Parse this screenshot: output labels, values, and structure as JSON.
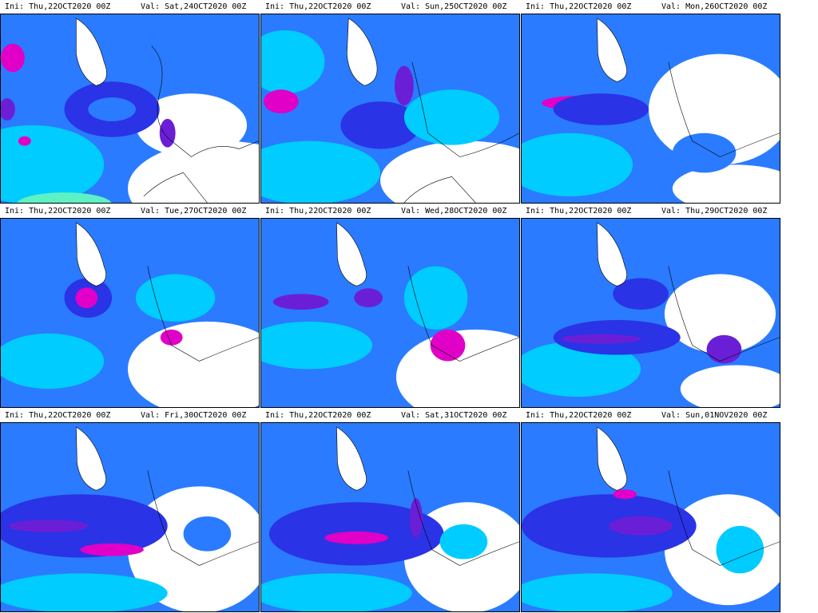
{
  "panels": [
    {
      "ini": "Ini: Thu,22OCT2020  00Z",
      "val": "Val: Sat,24OCT2020  00Z"
    },
    {
      "ini": "Ini: Thu,22OCT2020  00Z",
      "val": "Val: Sun,25OCT2020  00Z"
    },
    {
      "ini": "Ini: Thu,22OCT2020  00Z",
      "val": "Val: Mon,26OCT2020  00Z"
    },
    {
      "ini": "Ini: Thu,22OCT2020  00Z",
      "val": "Val: Tue,27OCT2020  00Z"
    },
    {
      "ini": "Ini: Thu,22OCT2020  00Z",
      "val": "Val: Wed,28OCT2020  00Z"
    },
    {
      "ini": "Ini: Thu,22OCT2020  00Z",
      "val": "Val: Thu,29OCT2020  00Z"
    },
    {
      "ini": "Ini: Thu,22OCT2020  00Z",
      "val": "Val: Fri,30OCT2020  00Z"
    },
    {
      "ini": "Ini: Thu,22OCT2020  00Z",
      "val": "Val: Sat,31OCT2020  00Z"
    },
    {
      "ini": "Ini: Thu,22OCT2020  00Z",
      "val": "Val: Sun,01NOV2020  00Z"
    }
  ],
  "colors": {
    "light_blue": "#00ccff",
    "mid_blue": "#2a7bff",
    "deep_blue": "#2a33e6",
    "violet": "#6a1fd6",
    "magenta": "#e000c8",
    "mint": "#5df2c4",
    "land_outline": "#000000"
  }
}
